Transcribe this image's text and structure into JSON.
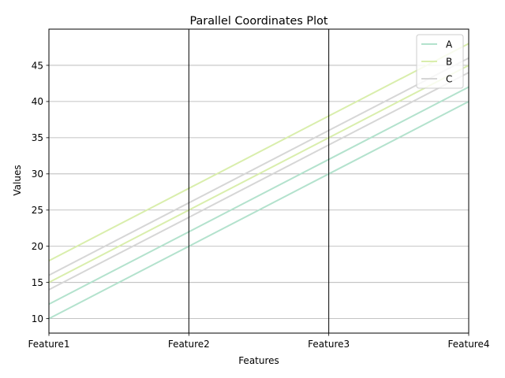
{
  "chart_data": {
    "type": "line",
    "title": "Parallel Coordinates Plot",
    "xlabel": "Features",
    "ylabel": "Values",
    "categories": [
      "Feature1",
      "Feature2",
      "Feature3",
      "Feature4"
    ],
    "ylim": [
      8,
      50
    ],
    "yticks": [
      10,
      15,
      20,
      25,
      30,
      35,
      40,
      45
    ],
    "grid": "horizontal",
    "legend_position": "top-right",
    "series": [
      {
        "name": "A",
        "class": "A",
        "color": "#b3e2cd",
        "values": [
          10,
          20,
          30,
          40
        ]
      },
      {
        "name": "A",
        "class": "A",
        "color": "#b3e2cd",
        "values": [
          12,
          22,
          32,
          42
        ]
      },
      {
        "name": "B",
        "class": "B",
        "color": "#d9eeac",
        "values": [
          15,
          25,
          35,
          45
        ]
      },
      {
        "name": "B",
        "class": "B",
        "color": "#d9eeac",
        "values": [
          18,
          28,
          38,
          48
        ]
      },
      {
        "name": "C",
        "class": "C",
        "color": "#d6d6d6",
        "values": [
          14,
          24,
          34,
          44
        ]
      },
      {
        "name": "C",
        "class": "C",
        "color": "#d6d6d6",
        "values": [
          16,
          26,
          36,
          46
        ]
      }
    ],
    "legend": [
      {
        "label": "A",
        "color": "#b3e2cd"
      },
      {
        "label": "B",
        "color": "#d9eeac"
      },
      {
        "label": "C",
        "color": "#d6d6d6"
      }
    ]
  }
}
